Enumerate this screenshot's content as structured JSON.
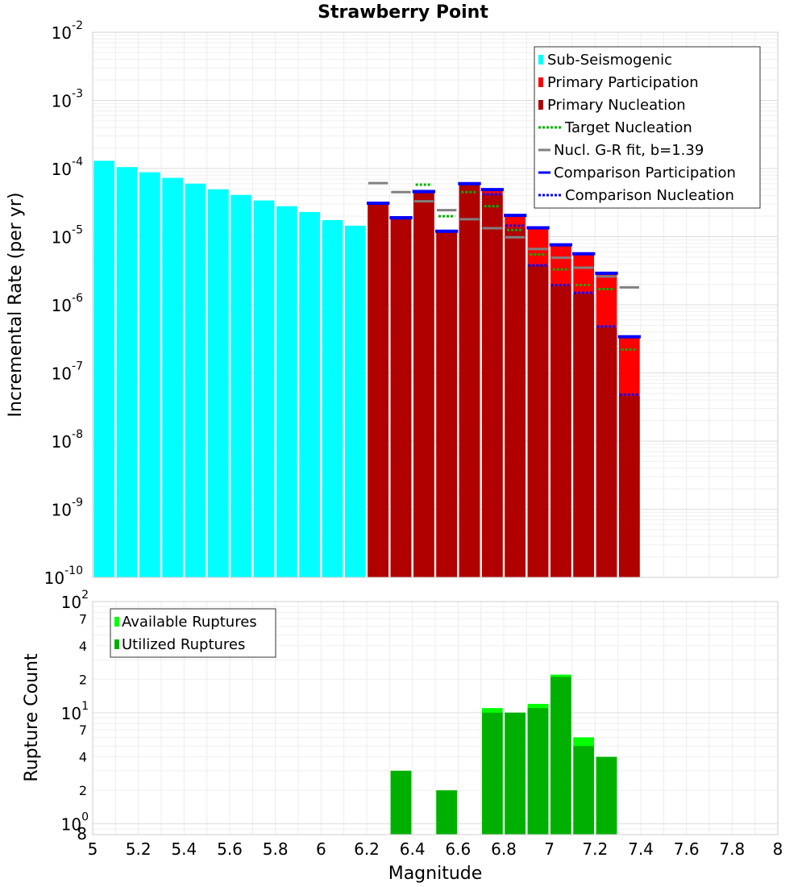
{
  "title": "Strawberry Point",
  "top_panel": {
    "ylabel": "Incremental Rate (per yr)",
    "y_tick_labels": [
      {
        "base": "10",
        "exp": "-10"
      },
      {
        "base": "10",
        "exp": "-9"
      },
      {
        "base": "10",
        "exp": "-8"
      },
      {
        "base": "10",
        "exp": "-7"
      },
      {
        "base": "10",
        "exp": "-6"
      },
      {
        "base": "10",
        "exp": "-5"
      },
      {
        "base": "10",
        "exp": "-4"
      },
      {
        "base": "10",
        "exp": "-3"
      },
      {
        "base": "10",
        "exp": "-2"
      }
    ],
    "legend": [
      {
        "label": "Sub-Seismogenic",
        "color": "#00ffff",
        "style": "box"
      },
      {
        "label": "Primary Participation",
        "color": "#ff0000",
        "style": "box"
      },
      {
        "label": "Primary Nucleation",
        "color": "#b00000",
        "style": "box"
      },
      {
        "label": "Target Nucleation",
        "color": "#00b000",
        "style": "dotted"
      },
      {
        "label": "Nucl. G-R fit, b=1.39",
        "color": "#808080",
        "style": "solid"
      },
      {
        "label": "Comparison Participation",
        "color": "#0000ff",
        "style": "solid"
      },
      {
        "label": "Comparison Nucleation",
        "color": "#0000ff",
        "style": "dotted"
      }
    ]
  },
  "bottom_panel": {
    "ylabel": "Rupture Count",
    "xlabel": "Magnitude",
    "y_tick_labels": {
      "decades": [
        {
          "base": "10",
          "exp": "0"
        },
        {
          "base": "10",
          "exp": "1"
        },
        {
          "base": "10",
          "exp": "2"
        }
      ],
      "minor": [
        "8",
        "2",
        "4",
        "7",
        "2",
        "4",
        "7"
      ]
    },
    "x_tick_labels": [
      "5",
      "5.2",
      "5.4",
      "5.6",
      "5.8",
      "6",
      "6.2",
      "6.4",
      "6.6",
      "6.8",
      "7",
      "7.2",
      "7.4",
      "7.6",
      "7.8",
      "8"
    ],
    "legend": [
      {
        "label": "Available Ruptures",
        "color": "#00ff00"
      },
      {
        "label": "Utilized Ruptures",
        "color": "#00b000"
      }
    ]
  },
  "chart_data": [
    {
      "type": "bar",
      "title": "Strawberry Point",
      "xlabel": "",
      "ylabel": "Incremental Rate (per yr)",
      "yscale": "log",
      "xlim": [
        5,
        8
      ],
      "ylim": [
        1e-10,
        0.01
      ],
      "bin_width": 0.1,
      "series": [
        {
          "name": "Sub-Seismogenic",
          "x": [
            5.05,
            5.15,
            5.25,
            5.35,
            5.45,
            5.55,
            5.65,
            5.75,
            5.85,
            5.95,
            6.05,
            6.15
          ],
          "values": [
            0.00013,
            0.000105,
            8.8e-05,
            7.3e-05,
            6e-05,
            4.95e-05,
            4.1e-05,
            3.4e-05,
            2.8e-05,
            2.3e-05,
            1.75e-05,
            1.45e-05
          ]
        },
        {
          "name": "Primary Participation",
          "x": [
            6.25,
            6.35,
            6.45,
            6.55,
            6.65,
            6.75,
            6.85,
            6.95,
            7.05,
            7.15,
            7.25,
            7.35
          ],
          "values": [
            3e-05,
            1.85e-05,
            4.5e-05,
            1.2e-05,
            5.8e-05,
            4.8e-05,
            2e-05,
            1.3e-05,
            7.5e-06,
            5.5e-06,
            2.8e-06,
            3.3e-07
          ]
        },
        {
          "name": "Primary Nucleation",
          "x": [
            6.25,
            6.35,
            6.45,
            6.55,
            6.65,
            6.75,
            6.85,
            6.95,
            7.05,
            7.15,
            7.25,
            7.35
          ],
          "values": [
            3e-05,
            1.85e-05,
            4.5e-05,
            1.15e-05,
            5.8e-05,
            4.1e-05,
            1.35e-05,
            3.8e-06,
            1.9e-06,
            1.45e-06,
            4.6e-07,
            4.6e-08
          ]
        },
        {
          "name": "Target Nucleation",
          "x": [
            6.45,
            6.55,
            6.65,
            6.75,
            6.85,
            6.95,
            7.05,
            7.15,
            7.25,
            7.35
          ],
          "values": [
            5.8e-05,
            2e-05,
            4.5e-05,
            2.8e-05,
            1.25e-05,
            5.5e-06,
            3.3e-06,
            1.95e-06,
            1.7e-06,
            2.2e-07
          ]
        },
        {
          "name": "Nucl. G-R fit, b=1.39",
          "x": [
            6.25,
            6.35,
            6.45,
            6.55,
            6.65,
            6.75,
            6.85,
            6.95,
            7.05,
            7.15,
            7.25,
            7.35
          ],
          "values": [
            6.1e-05,
            4.5e-05,
            3.3e-05,
            2.45e-05,
            1.8e-05,
            1.33e-05,
            9.8e-06,
            6.6e-06,
            4.9e-06,
            3.5e-06,
            2.6e-06,
            1.8e-06
          ]
        },
        {
          "name": "Comparison Participation",
          "x": [
            6.25,
            6.35,
            6.45,
            6.55,
            6.65,
            6.75,
            6.85,
            6.95,
            7.05,
            7.15,
            7.25,
            7.35
          ],
          "values": [
            3.1e-05,
            1.9e-05,
            4.6e-05,
            1.2e-05,
            6e-05,
            4.9e-05,
            2.05e-05,
            1.35e-05,
            7.6e-06,
            5.6e-06,
            2.9e-06,
            3.4e-07
          ]
        },
        {
          "name": "Comparison Nucleation",
          "x": [
            6.25,
            6.35,
            6.45,
            6.55,
            6.65,
            6.75,
            6.85,
            6.95,
            7.05,
            7.15,
            7.25,
            7.35
          ],
          "values": [
            3.1e-05,
            1.85e-05,
            4.5e-05,
            1.2e-05,
            5.9e-05,
            4.2e-05,
            1.45e-05,
            3.8e-06,
            1.95e-06,
            1.5e-06,
            4.8e-07,
            4.8e-08
          ]
        }
      ]
    },
    {
      "type": "bar",
      "title": "",
      "xlabel": "Magnitude",
      "ylabel": "Rupture Count",
      "yscale": "log",
      "xlim": [
        5,
        8
      ],
      "ylim": [
        0.8,
        100
      ],
      "bin_width": 0.1,
      "series": [
        {
          "name": "Available Ruptures",
          "x": [
            6.35,
            6.55,
            6.75,
            6.85,
            6.95,
            7.05,
            7.15,
            7.25
          ],
          "values": [
            3,
            2,
            11,
            10,
            12,
            22,
            6,
            4
          ]
        },
        {
          "name": "Utilized Ruptures",
          "x": [
            6.35,
            6.55,
            6.75,
            6.85,
            6.95,
            7.05,
            7.15,
            7.25
          ],
          "values": [
            3,
            2,
            10,
            10,
            11,
            21,
            5,
            4
          ]
        }
      ]
    }
  ]
}
